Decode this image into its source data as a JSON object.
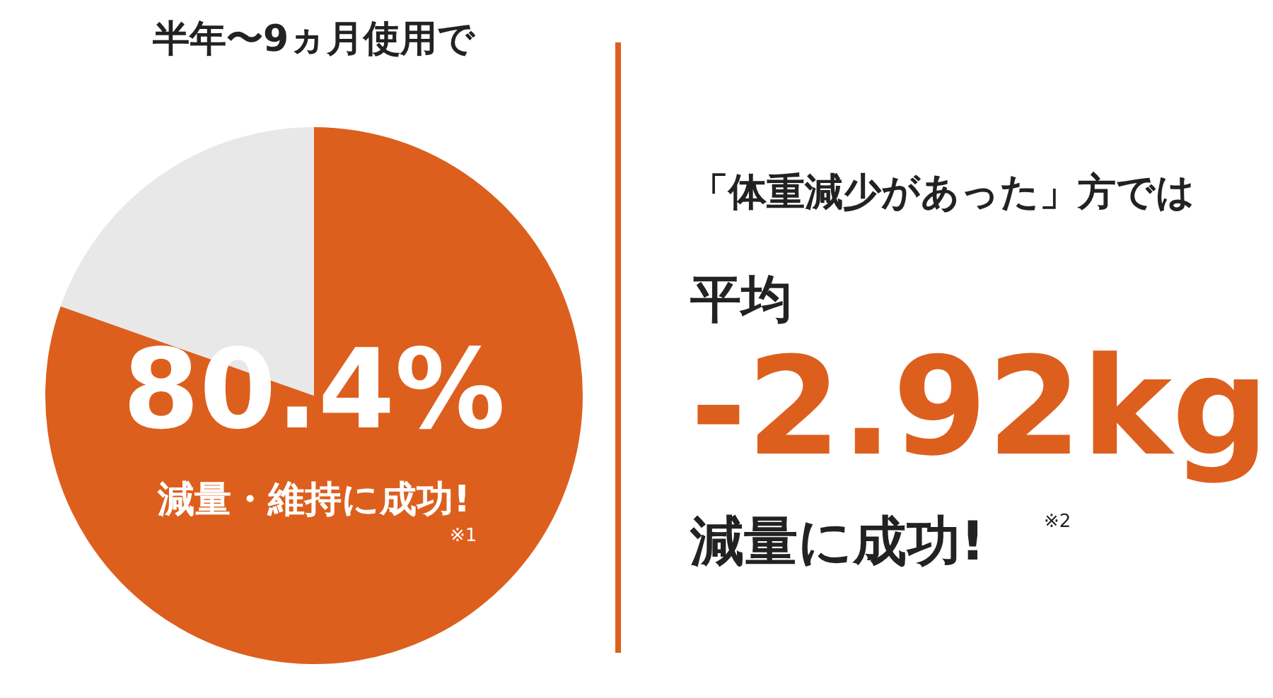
{
  "chart_data": [
    {
      "type": "pie",
      "title": "半年〜9ヵ月使用で",
      "categories": [
        null,
        null
      ],
      "values": [
        80.4,
        19.6
      ],
      "colors": [
        "#dd5f1e",
        "#e8e8e8"
      ],
      "value_labels": [
        "80.4%",
        null
      ],
      "legend": false,
      "annotations": [
        "減量・維持に成功!",
        "※1"
      ]
    },
    {
      "type": "other",
      "annotations": [
        "「体重減少があった」方では",
        "平均",
        "-2.92kg",
        "減量に成功!",
        "※2"
      ]
    }
  ]
}
